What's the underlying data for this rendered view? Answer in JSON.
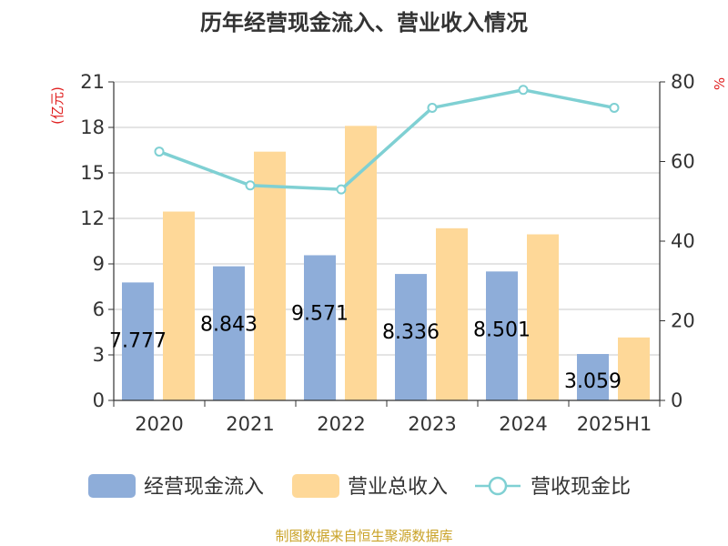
{
  "chart_data": {
    "type": "bar",
    "title": "历年经营现金流入、营业收入情况",
    "left_unit": "(亿元)",
    "right_unit": "%",
    "categories": [
      "2020",
      "2021",
      "2022",
      "2023",
      "2024",
      "2025H1"
    ],
    "series": [
      {
        "name": "经营现金流入",
        "type": "bar",
        "axis": "left",
        "color": "#8eadd9",
        "values": [
          7.777,
          8.843,
          9.571,
          8.336,
          8.501,
          3.059
        ],
        "labels": [
          "7.777",
          "8.843",
          "9.571",
          "8.336",
          "8.501",
          "3.059"
        ]
      },
      {
        "name": "营业总收入",
        "type": "bar",
        "axis": "left",
        "color": "#fed898",
        "values": [
          12.45,
          16.4,
          18.1,
          11.35,
          10.95,
          4.15
        ]
      },
      {
        "name": "营收现金比",
        "type": "line",
        "axis": "right",
        "color": "#7fd0d3",
        "values": [
          62.5,
          54.0,
          53.0,
          73.5,
          78.0,
          73.5
        ]
      }
    ],
    "ylim_left": [
      0,
      21
    ],
    "yticks_left": [
      "0",
      "3",
      "6",
      "9",
      "12",
      "15",
      "18",
      "21"
    ],
    "ylim_right": [
      0,
      80
    ],
    "yticks_right": [
      "0",
      "20",
      "40",
      "60",
      "80"
    ],
    "grid": true,
    "legend_position": "bottom"
  },
  "source": "制图数据来自恒生聚源数据库"
}
